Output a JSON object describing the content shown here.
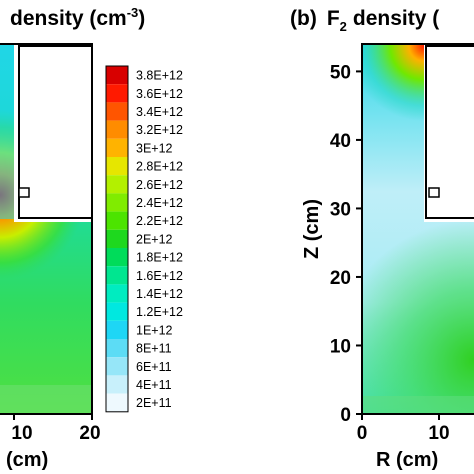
{
  "chart_data": [
    {
      "type": "heatmap",
      "panel": "",
      "title": "density (cm",
      "title_exponent": "-3",
      "title_close": ")",
      "xlabel": "(cm)",
      "ylabel": "",
      "x_ticks": [
        "10",
        "20"
      ],
      "xlim": [
        0,
        21
      ],
      "ylim": [
        0,
        54
      ],
      "colorbar": {
        "labels": [
          "3.8E+12",
          "3.6E+12",
          "3.4E+12",
          "3.2E+12",
          "3E+12",
          "2.8E+12",
          "2.6E+12",
          "2.4E+12",
          "2.2E+12",
          "2E+12",
          "1.8E+12",
          "1.6E+12",
          "1.4E+12",
          "1.2E+12",
          "1E+12",
          "8E+11",
          "6E+11",
          "4E+11",
          "2E+11"
        ],
        "values": [
          3800000000000.0,
          3600000000000.0,
          3400000000000.0,
          3200000000000.0,
          3000000000000.0,
          2800000000000.0,
          2600000000000.0,
          2400000000000.0,
          2200000000000.0,
          2000000000000.0,
          1800000000000.0,
          1600000000000.0,
          1400000000000.0,
          1200000000000.0,
          1000000000000.0,
          800000000000.0,
          600000000000.0,
          400000000000.0,
          200000000000.0
        ],
        "colors": [
          "#d80000",
          "#ff1a00",
          "#ff5500",
          "#ff8c00",
          "#ffb300",
          "#e6e600",
          "#b3f000",
          "#80ec00",
          "#4ce400",
          "#1ed81e",
          "#00dc5a",
          "#00e690",
          "#00ecc0",
          "#00e8e0",
          "#1ed6f5",
          "#5cdcf5",
          "#96e6f8",
          "#c8f0fb",
          "#eef9fe"
        ]
      }
    },
    {
      "type": "heatmap",
      "panel": "(b)",
      "title": "F",
      "title_subscript": "2",
      "title_rest": "density (",
      "xlabel": "R (cm)",
      "ylabel": "Z (cm)",
      "x_ticks": [
        "0",
        "10"
      ],
      "y_ticks": [
        "0",
        "10",
        "20",
        "30",
        "40",
        "50"
      ],
      "xlim": [
        0,
        20
      ],
      "ylim": [
        0,
        54
      ]
    }
  ]
}
